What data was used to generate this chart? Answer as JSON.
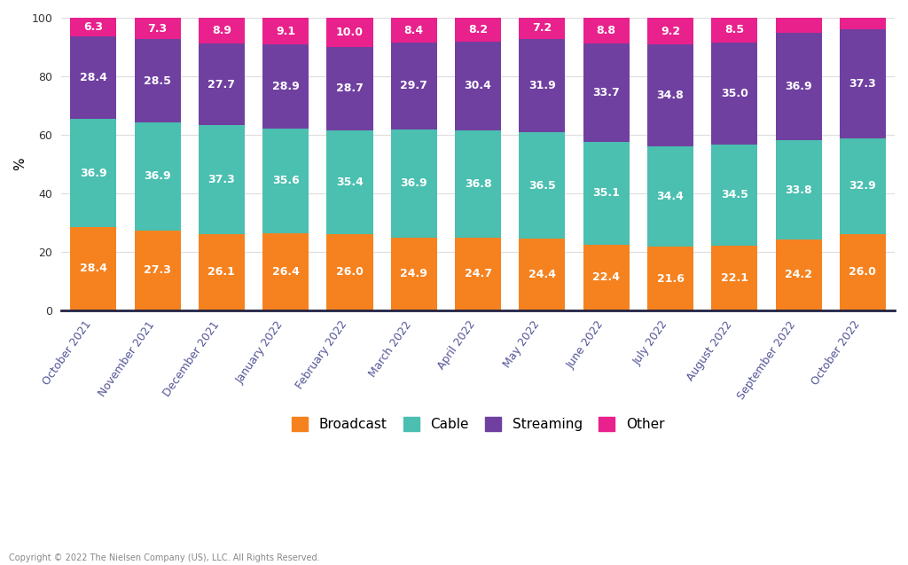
{
  "months": [
    "October 2021",
    "November 2021",
    "December 2021",
    "January 2022",
    "February 2022",
    "March 2022",
    "April 2022",
    "May 2022",
    "June 2022",
    "July 2022",
    "August 2022",
    "September 2022",
    "October 2022"
  ],
  "broadcast": [
    28.4,
    27.3,
    26.1,
    26.4,
    26.0,
    24.9,
    24.7,
    24.4,
    22.4,
    21.6,
    22.1,
    24.2,
    26.0
  ],
  "cable": [
    36.9,
    36.9,
    37.3,
    35.6,
    35.4,
    36.9,
    36.8,
    36.5,
    35.1,
    34.4,
    34.5,
    33.8,
    32.9
  ],
  "streaming": [
    28.4,
    28.5,
    27.7,
    28.9,
    28.7,
    29.7,
    30.4,
    31.9,
    33.7,
    34.8,
    35.0,
    36.9,
    37.3
  ],
  "other": [
    6.3,
    7.3,
    8.9,
    9.1,
    10.0,
    8.4,
    8.2,
    7.2,
    8.8,
    9.2,
    8.5,
    5.1,
    3.8
  ],
  "broadcast_color": "#f5821f",
  "cable_color": "#4bbfb0",
  "streaming_color": "#7040a0",
  "other_color": "#e8218c",
  "background_color": "#ffffff",
  "ylabel": "%",
  "ylim": [
    0,
    100
  ],
  "yticks": [
    0,
    20,
    40,
    60,
    80,
    100
  ],
  "bar_width": 0.72,
  "label_fontsize": 9,
  "tick_fontsize": 9,
  "legend_fontsize": 11,
  "copyright_text": "Copyright © 2022 The Nielsen Company (US), LLC. All Rights Reserved.",
  "figsize": [
    10.24,
    6.37
  ],
  "dpi": 100
}
